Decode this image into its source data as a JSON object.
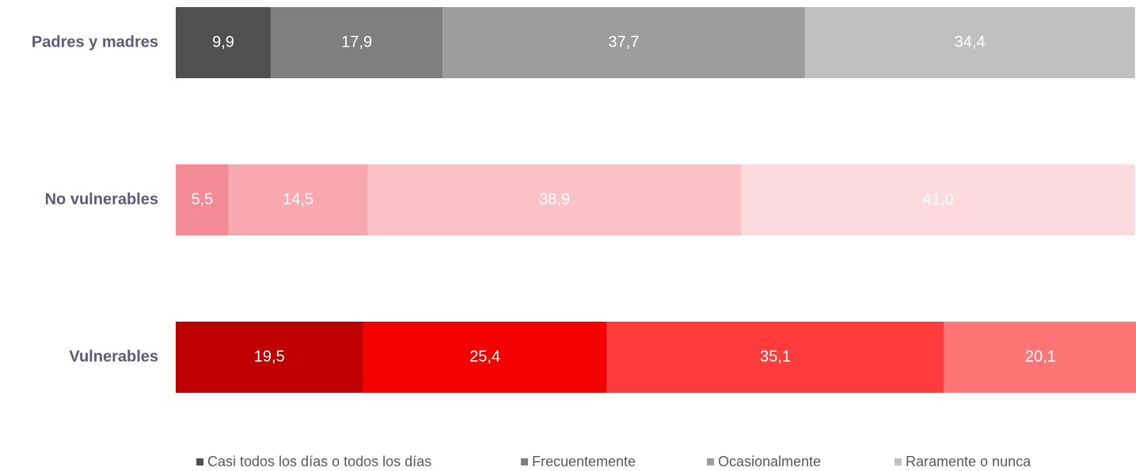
{
  "chart_data": {
    "type": "stacked-bar-horizontal",
    "categories": [
      "Padres y madres",
      "No vulnerables",
      "Vulnerables"
    ],
    "xlim": [
      0,
      100
    ],
    "series": [
      {
        "name": "Casi todos los días o todos los días",
        "color": "#505050",
        "colors": [
          "#505050",
          "#f28b93",
          "#c00000"
        ],
        "values": [
          9.9,
          5.5,
          19.5
        ],
        "value_labels": [
          "9,9",
          "5,5",
          "19,5"
        ]
      },
      {
        "name": "Frecuentemente",
        "color": "#7f7f7d",
        "colors": [
          "#7f7f7d",
          "#f8a8ae",
          "#f40000"
        ],
        "values": [
          17.9,
          14.5,
          25.4
        ],
        "value_labels": [
          "17,9",
          "14,5",
          "25,4"
        ]
      },
      {
        "name": "Ocasionalmente",
        "color": "#9d9e9b",
        "colors": [
          "#9d9e9b",
          "#fac2c6",
          "#ff3b3b"
        ],
        "values": [
          37.7,
          38.9,
          35.1
        ],
        "value_labels": [
          "37,7",
          "38,9",
          "35,1"
        ]
      },
      {
        "name": "Raramente o nunca",
        "color": "#c0c1be",
        "colors": [
          "#c0c1be",
          "#fcdadd",
          "#ff7575"
        ],
        "values": [
          34.4,
          41.0,
          20.1
        ],
        "value_labels": [
          "34,4",
          "41,0",
          "20,1"
        ]
      }
    ]
  }
}
